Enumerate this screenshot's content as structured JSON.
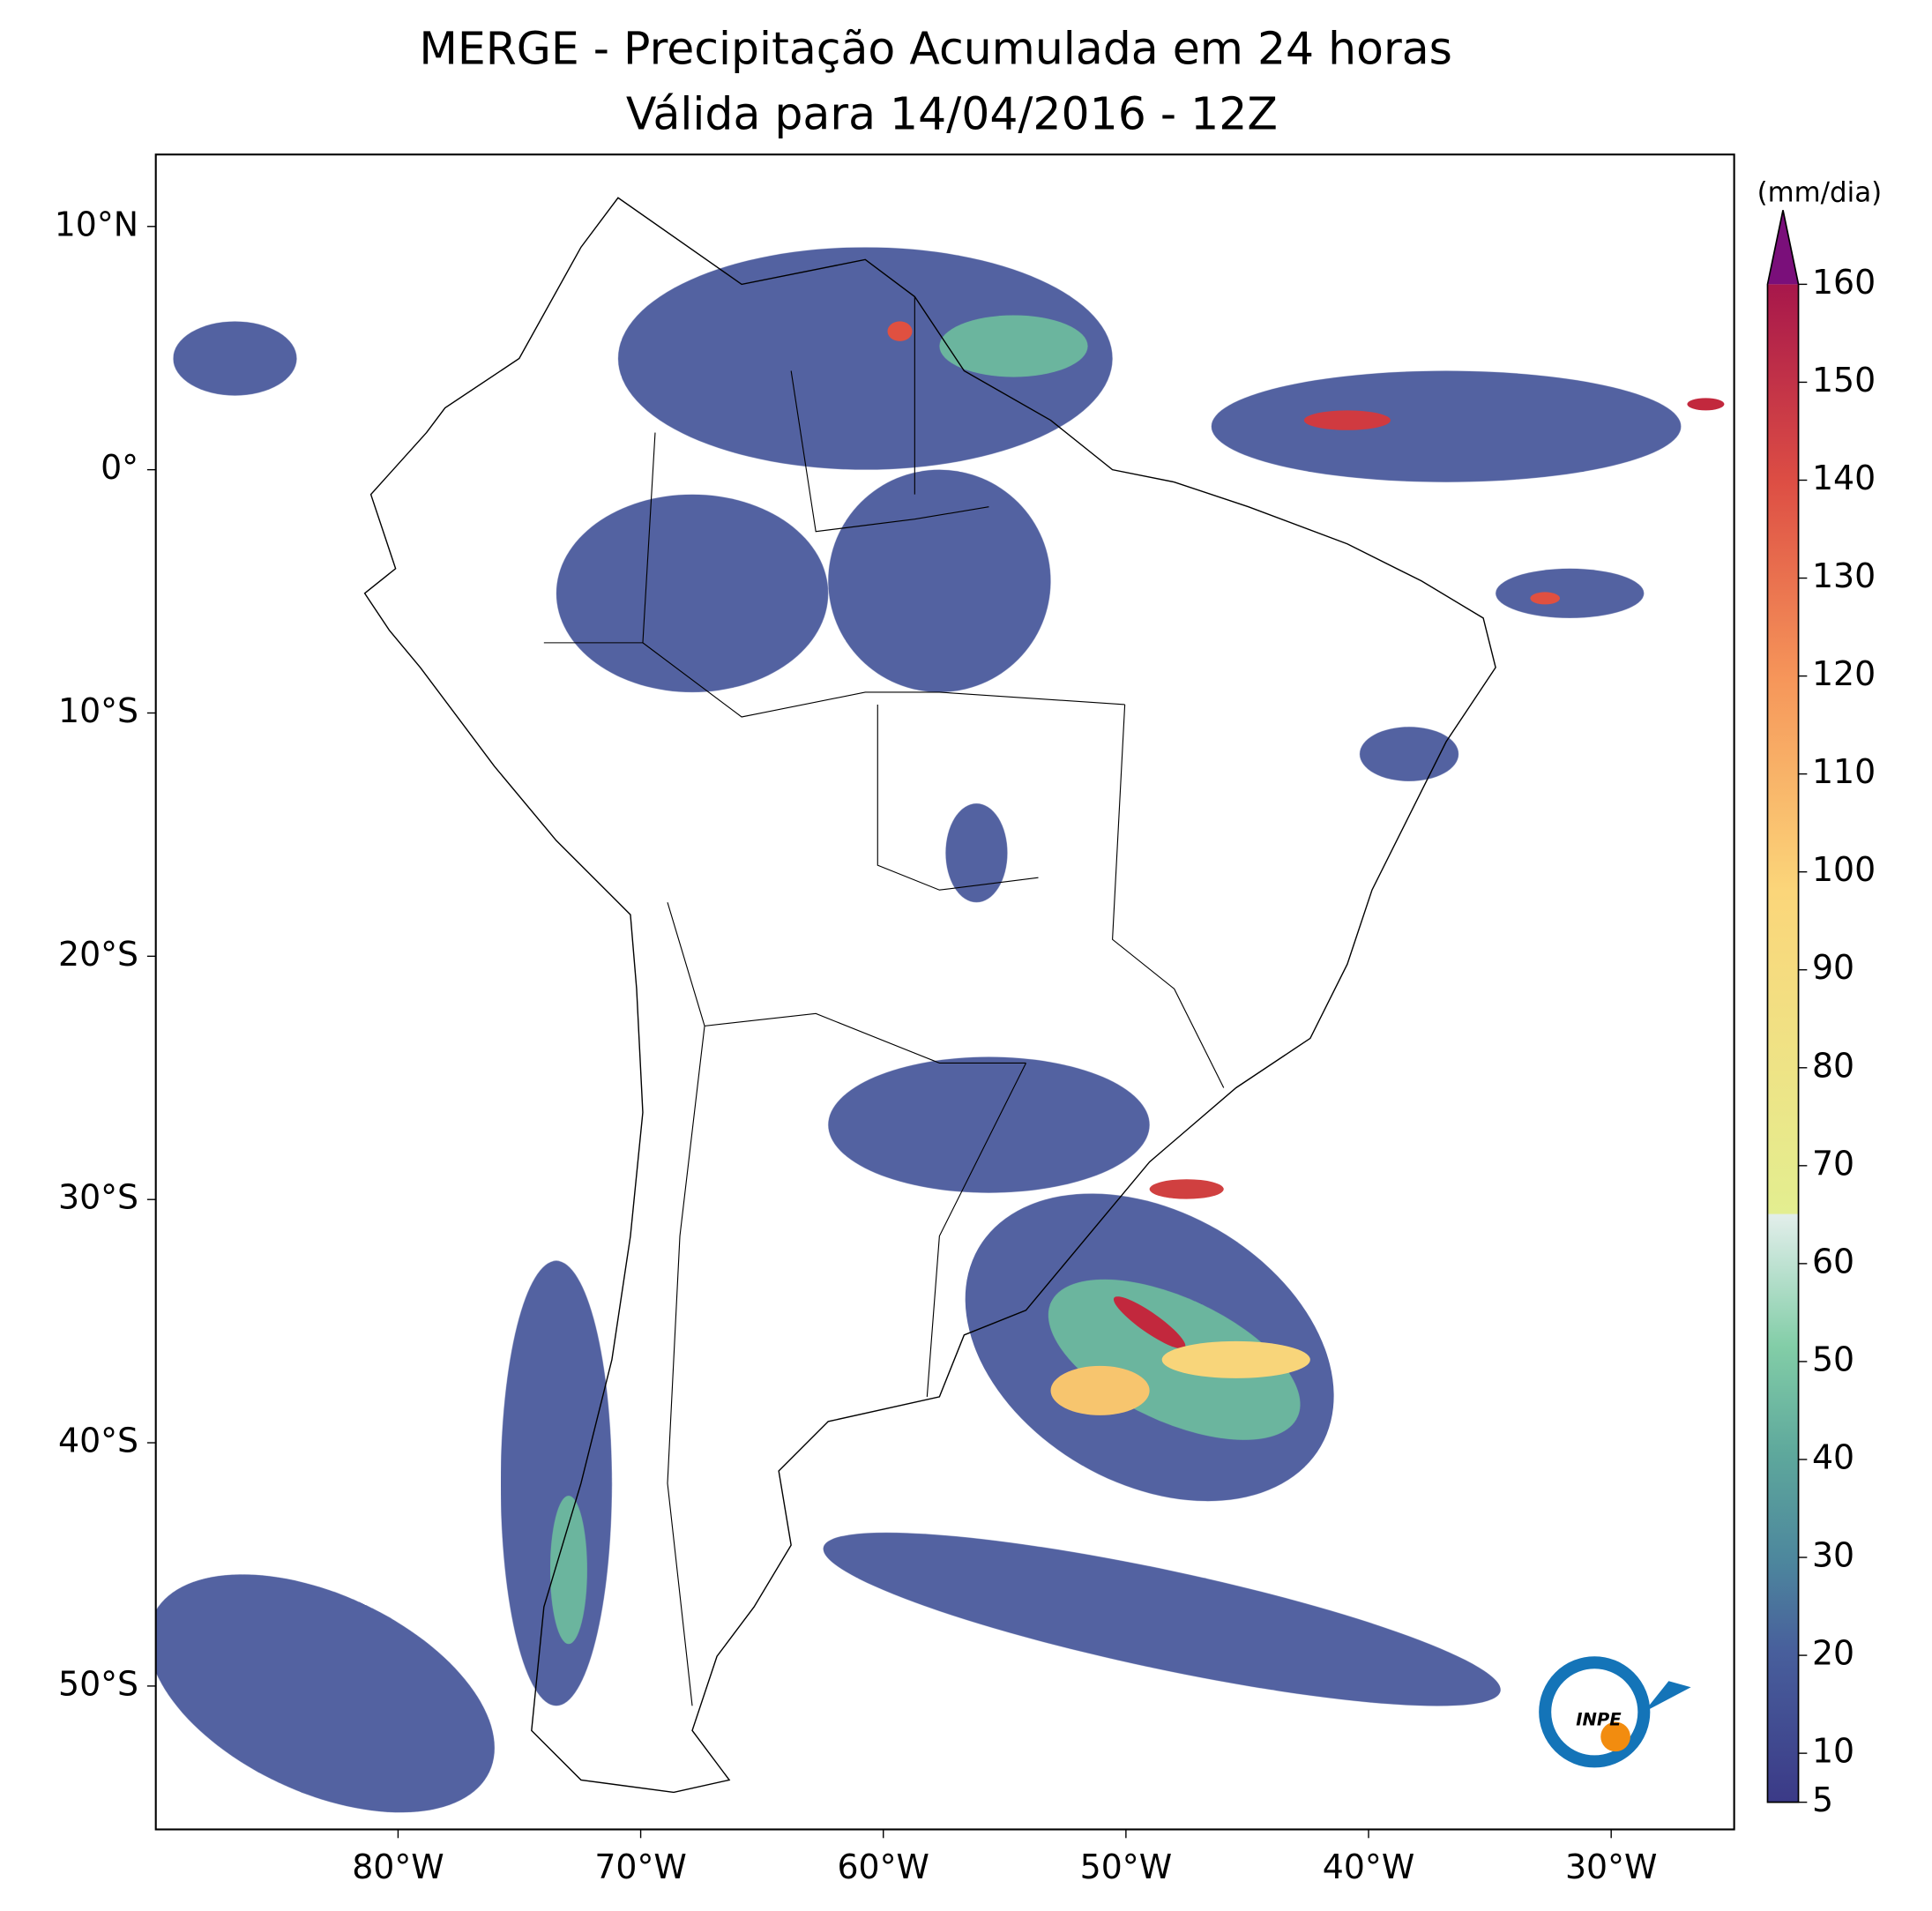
{
  "map": {
    "title": [
      "MERGE - Precipitação Acumulada em 24 horas",
      "Válida para 14/04/2016 - 12Z"
    ],
    "lon_ticks": [
      {
        "value": -80,
        "label": "80°W"
      },
      {
        "value": -70,
        "label": "70°W"
      },
      {
        "value": -60,
        "label": "60°W"
      },
      {
        "value": -50,
        "label": "50°W"
      },
      {
        "value": -40,
        "label": "40°W"
      },
      {
        "value": -30,
        "label": "30°W"
      }
    ],
    "lat_ticks": [
      {
        "value": 10,
        "label": "10°N"
      },
      {
        "value": 0,
        "label": "0°"
      },
      {
        "value": -10,
        "label": "10°S"
      },
      {
        "value": -20,
        "label": "20°S"
      },
      {
        "value": -30,
        "label": "30°S"
      },
      {
        "value": -40,
        "label": "40°S"
      },
      {
        "value": -50,
        "label": "50°S"
      }
    ],
    "colorbar": {
      "label": "(mm/dia)",
      "lim": [
        5,
        160
      ],
      "ticks": [
        5,
        10,
        20,
        30,
        40,
        50,
        60,
        70,
        80,
        90,
        100,
        110,
        120,
        130,
        140,
        150,
        160
      ]
    },
    "logo": "INPE"
  }
}
